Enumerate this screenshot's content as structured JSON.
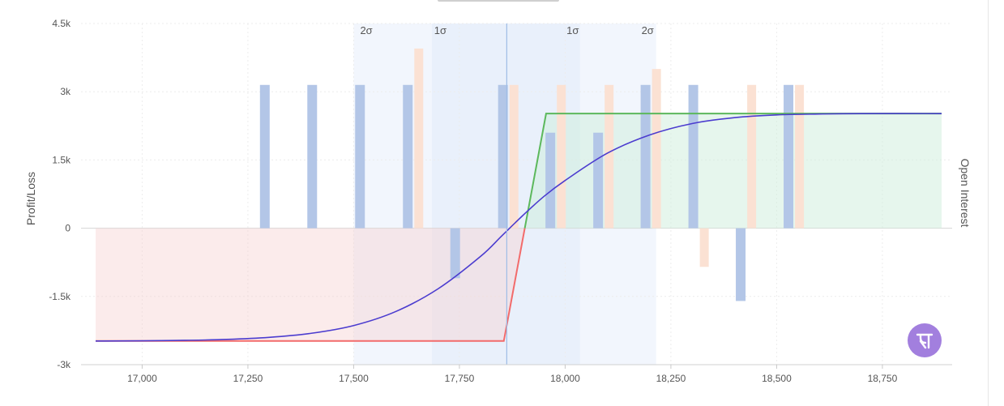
{
  "chart_data": {
    "type": "line",
    "title": "",
    "ylabel": "Profit/Loss",
    "y2label": "Open Interest",
    "xlim": [
      16890,
      18890
    ],
    "ylim": [
      -3000,
      4500
    ],
    "x_ticks": [
      17000,
      17250,
      17500,
      17750,
      18000,
      18250,
      18500,
      18750
    ],
    "x_tick_labels": [
      "17,000",
      "17,250",
      "17,500",
      "17,750",
      "18,000",
      "18,250",
      "18,500",
      "18,750"
    ],
    "y_ticks": [
      -3000,
      -1500,
      0,
      1500,
      3000,
      4500
    ],
    "y_tick_labels": [
      "-3k",
      "-1.5k",
      "0",
      "1.5k",
      "3k",
      "4.5k"
    ],
    "spot": 17862,
    "sigma_bands": [
      {
        "label": "2σ",
        "from": 17500,
        "to": 18215
      },
      {
        "label": "1σ",
        "from": 17685,
        "to": 18035
      }
    ],
    "sigma_labels": [
      {
        "text": "2σ",
        "x": 17530
      },
      {
        "text": "1σ",
        "x": 17705
      },
      {
        "text": "1σ",
        "x": 18018
      },
      {
        "text": "2σ",
        "x": 18195
      }
    ],
    "series": [
      {
        "role": "expiry_payoff",
        "x": [
          16890,
          17855,
          17955,
          18890
        ],
        "values": [
          -2480,
          -2480,
          2520,
          2520
        ],
        "loss_color": "#f26b6b",
        "profit_color": "#5cb85c"
      },
      {
        "role": "target_payoff",
        "color": "#4b3ccf",
        "x": [
          16890,
          17000,
          17100,
          17200,
          17300,
          17400,
          17500,
          17600,
          17700,
          17800,
          17850,
          17900,
          17950,
          18000,
          18100,
          18200,
          18300,
          18400,
          18500,
          18600,
          18700,
          18890
        ],
        "values": [
          -2480,
          -2475,
          -2465,
          -2445,
          -2400,
          -2310,
          -2140,
          -1830,
          -1330,
          -620,
          -170,
          280,
          700,
          1050,
          1650,
          2050,
          2300,
          2430,
          2490,
          2510,
          2520,
          2520
        ]
      }
    ],
    "oi_bars": {
      "call_color": "#b3c6e7",
      "put_color": "#fbe1d3",
      "call": [
        {
          "x": 17290,
          "v": 3150
        },
        {
          "x": 17402,
          "v": 3150
        },
        {
          "x": 17515,
          "v": 3150
        },
        {
          "x": 17628,
          "v": 3150
        },
        {
          "x": 17740,
          "v": -1100
        },
        {
          "x": 17853,
          "v": 3150
        },
        {
          "x": 17965,
          "v": 2100
        },
        {
          "x": 18078,
          "v": 2100
        },
        {
          "x": 18190,
          "v": 3150
        },
        {
          "x": 18303,
          "v": 3150
        },
        {
          "x": 18415,
          "v": -1600
        },
        {
          "x": 18528,
          "v": 3150
        }
      ],
      "put": [
        {
          "x": 17653,
          "v": 3950
        },
        {
          "x": 17878,
          "v": 3150
        },
        {
          "x": 17990,
          "v": 3150
        },
        {
          "x": 18103,
          "v": 3150
        },
        {
          "x": 18215,
          "v": 3500
        },
        {
          "x": 18328,
          "v": -850
        },
        {
          "x": 18440,
          "v": 3150
        },
        {
          "x": 18553,
          "v": 3150
        }
      ]
    },
    "grid": true,
    "legend": "none"
  }
}
